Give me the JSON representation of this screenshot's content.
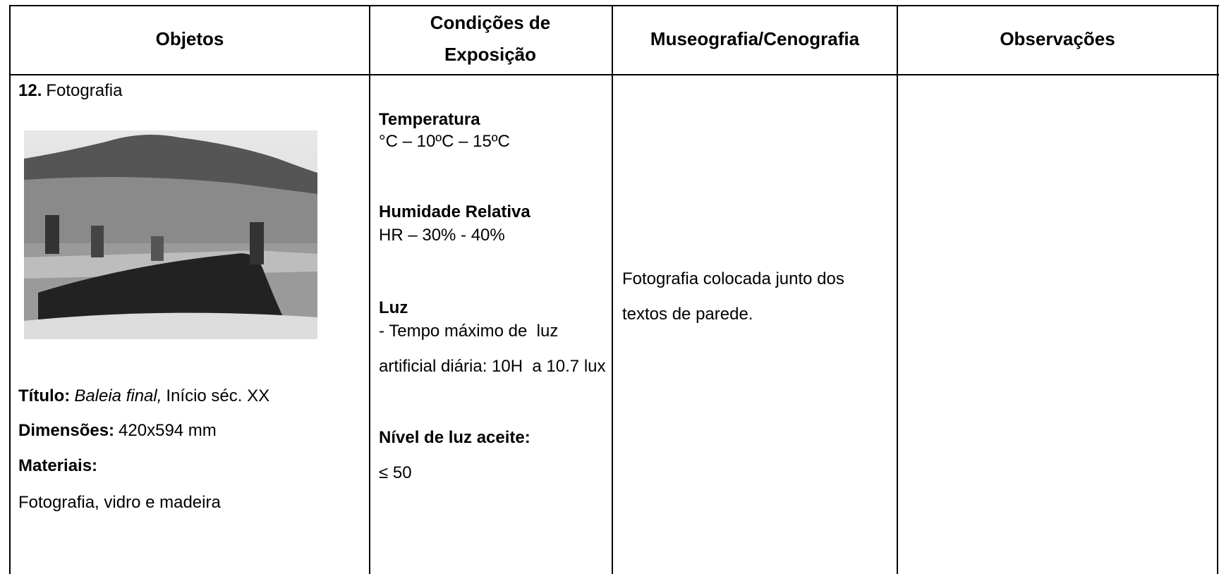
{
  "table": {
    "headers": [
      "Objetos",
      "Condições de Exposição",
      "Museografia/Cenografia",
      "Observações"
    ],
    "objeto": {
      "number": "12.",
      "type": "Fotografia",
      "title_label": "Título:",
      "title": "Baleia final,",
      "date": "Início séc. XX",
      "dimensions_label": "Dimensões:",
      "dimensions": "420x594 mm",
      "materials_label": "Materiais:",
      "materials": "Fotografia, vidro e madeira"
    },
    "condicoes": {
      "temperature_label": "Temperatura",
      "temperature": "°C – 10ºC – 15ºC",
      "humidity_label": "Humidade Relativa",
      "humidity": "HR – 30% - 40%",
      "light_label": "Luz",
      "light": "- Tempo máximo de  luz artificial diária: 10H  a 10.7 lux",
      "light_level_label": "Nível de luz aceite:",
      "light_level": "≤ 50"
    },
    "museografia": "Fotografia colocada junto dos textos de parede."
  }
}
